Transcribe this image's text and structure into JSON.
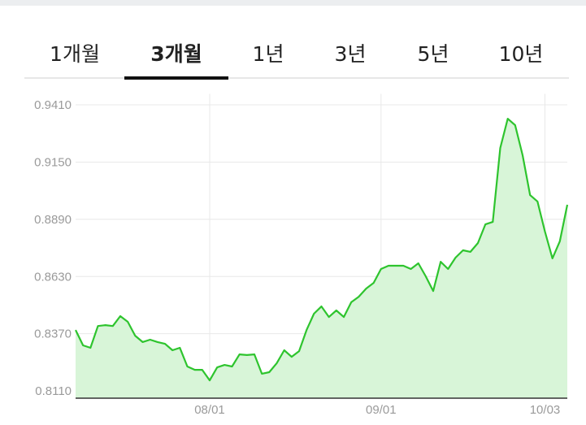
{
  "tabs": [
    "1개월",
    "3개월",
    "1년",
    "3년",
    "5년",
    "10년"
  ],
  "active_tab": 1,
  "chart_data": {
    "type": "area",
    "categories": [
      null,
      null,
      null,
      null,
      null,
      null,
      null,
      null,
      null,
      null,
      null,
      null,
      null,
      null,
      null,
      null,
      null,
      null,
      "08/01",
      null,
      null,
      null,
      null,
      null,
      null,
      null,
      null,
      null,
      null,
      null,
      null,
      null,
      null,
      null,
      null,
      null,
      null,
      null,
      null,
      null,
      null,
      "09/01",
      null,
      null,
      null,
      null,
      null,
      null,
      null,
      null,
      null,
      null,
      null,
      null,
      null,
      null,
      null,
      null,
      null,
      null,
      null,
      null,
      null,
      "10/03",
      null,
      null,
      null
    ],
    "values": [
      0.8387,
      0.8317,
      0.8306,
      0.8405,
      0.8409,
      0.8405,
      0.845,
      0.8424,
      0.8361,
      0.8332,
      0.8343,
      0.8332,
      0.8324,
      0.8295,
      0.8306,
      0.8221,
      0.8206,
      0.8206,
      0.8158,
      0.8217,
      0.8228,
      0.8221,
      0.8276,
      0.8273,
      0.8276,
      0.8188,
      0.8195,
      0.8236,
      0.8295,
      0.8265,
      0.8291,
      0.8387,
      0.8461,
      0.8494,
      0.8446,
      0.8476,
      0.8446,
      0.8513,
      0.8538,
      0.8575,
      0.8601,
      0.8664,
      0.8679,
      0.8679,
      0.8679,
      0.8664,
      0.869,
      0.8631,
      0.8564,
      0.8697,
      0.8664,
      0.8716,
      0.8749,
      0.8742,
      0.8782,
      0.8867,
      0.8878,
      0.9214,
      0.9347,
      0.9318,
      0.9181,
      0.9,
      0.8971,
      0.8834,
      0.8712,
      0.879,
      0.8956
    ],
    "color": "#2ec42e",
    "fill": "#d8f5d8",
    "ylim": [
      0.8077,
      0.946
    ],
    "yticks": [
      {
        "value": 0.811,
        "label": "0.8110"
      },
      {
        "value": 0.837,
        "label": "0.8370"
      },
      {
        "value": 0.863,
        "label": "0.8630"
      },
      {
        "value": 0.889,
        "label": "0.8890"
      },
      {
        "value": 0.915,
        "label": "0.9150"
      },
      {
        "value": 0.941,
        "label": "0.9410"
      }
    ],
    "grid": true
  }
}
